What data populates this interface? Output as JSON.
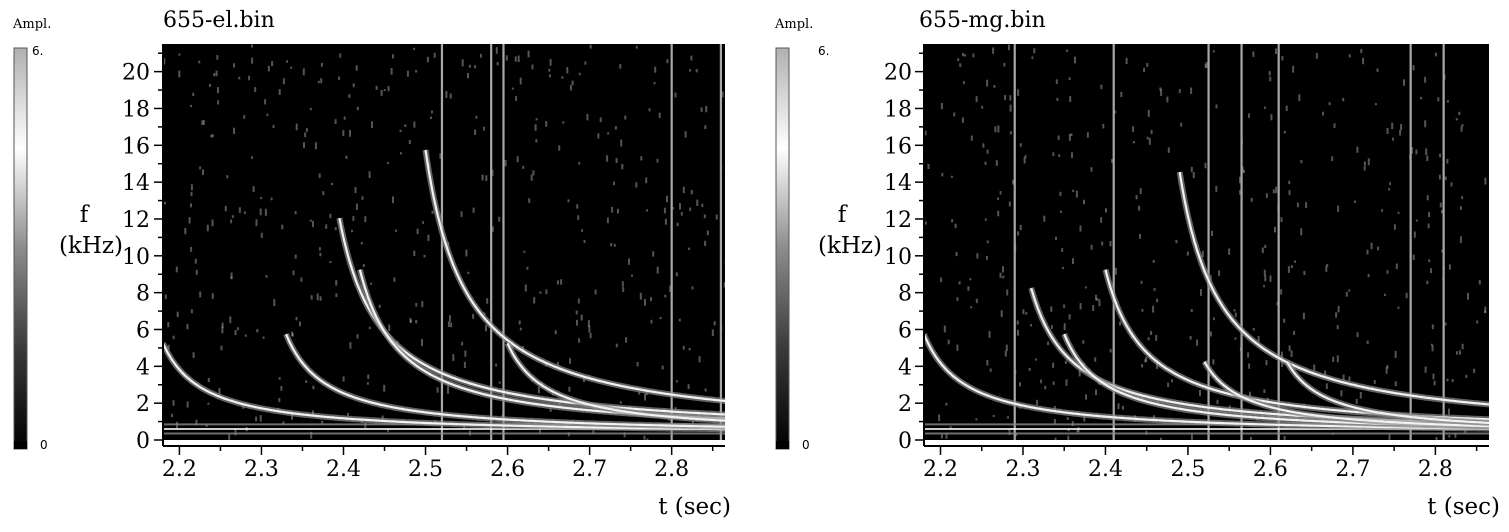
{
  "chart_data": [
    {
      "type": "heatmap",
      "title": "655-el.bin",
      "colorbar": {
        "label": "Ampl.",
        "min_label": "0",
        "max_label": "6.",
        "colormap": [
          "#000000",
          "#3a3a3a",
          "#8c8c8c",
          "#ffffff",
          "#b0b0b0"
        ]
      },
      "xlabel": "t (sec)",
      "ylabel_line1": "f",
      "ylabel_line2": "(kHz)",
      "xlim": [
        2.18,
        2.865
      ],
      "ylim": [
        0,
        21.5
      ],
      "x_ticks": [
        "2.2",
        "2.3",
        "2.4",
        "2.5",
        "2.6",
        "2.7",
        "2.8"
      ],
      "y_ticks": [
        "0",
        "2",
        "4",
        "6",
        "8",
        "10",
        "12",
        "14",
        "16",
        "18",
        "20"
      ],
      "background": "#000000",
      "grid": false,
      "chirps": [
        {
          "t0": 2.18,
          "f0": 5.0
        },
        {
          "t0": 2.33,
          "f0": 5.5
        },
        {
          "t0": 2.395,
          "f0": 11.8
        },
        {
          "t0": 2.42,
          "f0": 9.0
        },
        {
          "t0": 2.5,
          "f0": 15.5
        },
        {
          "t0": 2.6,
          "f0": 5.0
        }
      ],
      "vertical_lines": [
        2.52,
        2.58,
        2.595,
        2.8,
        2.86
      ]
    },
    {
      "type": "heatmap",
      "title": "655-mg.bin",
      "colorbar": {
        "label": "Ampl.",
        "min_label": "0",
        "max_label": "6.",
        "colormap": [
          "#000000",
          "#3a3a3a",
          "#8c8c8c",
          "#ffffff",
          "#b0b0b0"
        ]
      },
      "xlabel": "t (sec)",
      "ylabel_line1": "f",
      "ylabel_line2": "(kHz)",
      "xlim": [
        2.18,
        2.865
      ],
      "ylim": [
        0,
        21.5
      ],
      "x_ticks": [
        "2.2",
        "2.3",
        "2.4",
        "2.5",
        "2.6",
        "2.7",
        "2.8"
      ],
      "y_ticks": [
        "0",
        "2",
        "4",
        "6",
        "8",
        "10",
        "12",
        "14",
        "16",
        "18",
        "20"
      ],
      "background": "#000000",
      "grid": false,
      "chirps": [
        {
          "t0": 2.18,
          "f0": 5.5
        },
        {
          "t0": 2.31,
          "f0": 8.0
        },
        {
          "t0": 2.35,
          "f0": 5.5
        },
        {
          "t0": 2.4,
          "f0": 9.0
        },
        {
          "t0": 2.49,
          "f0": 14.3
        },
        {
          "t0": 2.52,
          "f0": 4.0
        },
        {
          "t0": 2.62,
          "f0": 4.0
        }
      ],
      "vertical_lines": [
        2.29,
        2.41,
        2.525,
        2.565,
        2.61,
        2.77,
        2.81
      ]
    }
  ]
}
